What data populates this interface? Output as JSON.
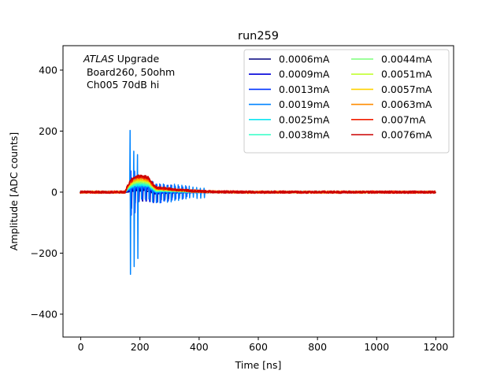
{
  "chart_data": {
    "type": "line",
    "title": "run259",
    "xlabel": "Time [ns]",
    "ylabel": "Amplitude [ADC counts]",
    "xlim": [
      -60,
      1260
    ],
    "ylim": [
      -475,
      480
    ],
    "xticks": [
      0,
      200,
      400,
      600,
      800,
      1000,
      1200
    ],
    "yticks": [
      -400,
      -200,
      0,
      200,
      400
    ],
    "ytick_labels": [
      "−400",
      "−200",
      "0",
      "200",
      "400"
    ],
    "grid": false,
    "legend_position": "top-right",
    "legend_columns": 2,
    "annotation": {
      "italic": "ATLAS",
      "rest": " Upgrade",
      "line2": " Board260, 50ohm",
      "line3": " Ch005 70dB hi"
    },
    "series": [
      {
        "name": "0.0006mA",
        "color": "#00007f"
      },
      {
        "name": "0.0009mA",
        "color": "#0000d9"
      },
      {
        "name": "0.0013mA",
        "color": "#0034ff"
      },
      {
        "name": "0.0019mA",
        "color": "#0084ff"
      },
      {
        "name": "0.0025mA",
        "color": "#0ee5f1"
      },
      {
        "name": "0.0038mA",
        "color": "#31ffc6"
      },
      {
        "name": "0.0044mA",
        "color": "#7dff7a"
      },
      {
        "name": "0.0051mA",
        "color": "#c3ff34"
      },
      {
        "name": "0.0057mA",
        "color": "#ffd200"
      },
      {
        "name": "0.0063mA",
        "color": "#ff8c00"
      },
      {
        "name": "0.007mA",
        "color": "#f11e00"
      },
      {
        "name": "0.0076mA",
        "color": "#cc0000"
      }
    ]
  }
}
